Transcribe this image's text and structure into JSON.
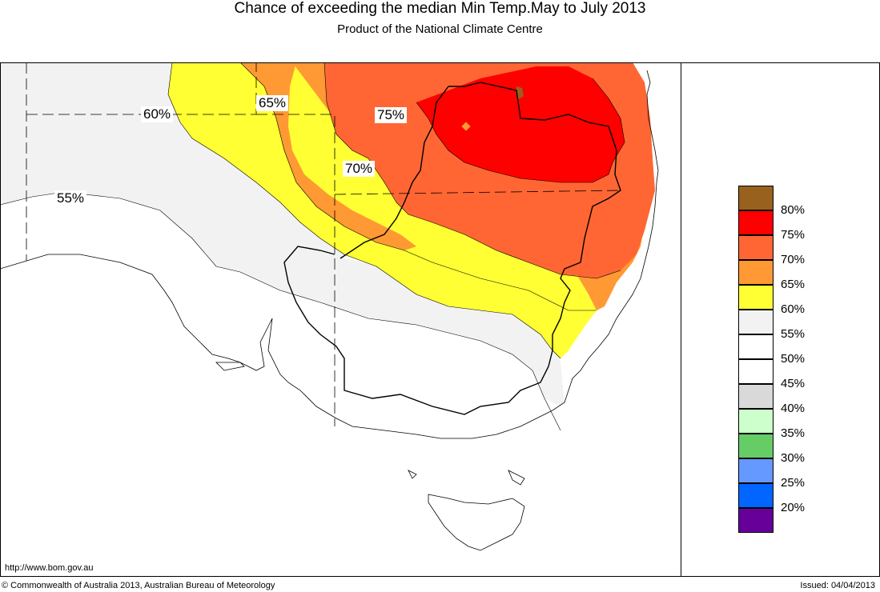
{
  "header": {
    "title": "Chance of exceeding the median Min Temp.May to July 2013",
    "subtitle": "Product of the National Climate Centre"
  },
  "map": {
    "colors": {
      "p80": "#98621e",
      "p75": "#ff0000",
      "p70": "#ff6633",
      "p65": "#ff9933",
      "p60": "#ffff33",
      "p55": "#f2f2f2",
      "p50": "#ffffff"
    },
    "contour_labels": {
      "l55": "55%",
      "l60": "60%",
      "l65": "65%",
      "l70": "70%",
      "l75": "75%"
    }
  },
  "legend": {
    "items": [
      {
        "label": "80%",
        "color": "#98621e"
      },
      {
        "label": "75%",
        "color": "#ff0000"
      },
      {
        "label": "70%",
        "color": "#ff6633"
      },
      {
        "label": "65%",
        "color": "#ff9933"
      },
      {
        "label": "60%",
        "color": "#ffff33"
      },
      {
        "label": "55%",
        "color": "#f2f2f2"
      },
      {
        "label": "50%",
        "color": "#ffffff"
      },
      {
        "label": "45%",
        "color": "#ffffff"
      },
      {
        "label": "40%",
        "color": "#d9d9d9"
      },
      {
        "label": "35%",
        "color": "#ccffcc"
      },
      {
        "label": "30%",
        "color": "#66cc66"
      },
      {
        "label": "25%",
        "color": "#6699ff"
      },
      {
        "label": "20%",
        "color": "#0066ff"
      },
      {
        "label": "",
        "color": "#660099"
      }
    ]
  },
  "footer": {
    "url": "http://www.bom.gov.au",
    "copyright": "© Commonwealth of Australia 2013, Australian Bureau of Meteorology",
    "issued": "Issued: 04/04/2013"
  }
}
